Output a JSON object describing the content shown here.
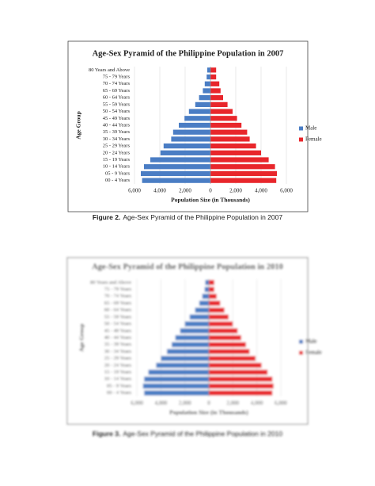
{
  "chart_data": [
    {
      "type": "pyramid",
      "title": "Age-Sex Pyramid of the Philippine Population in 2007",
      "x_label": "Population Size (in Thousands)",
      "y_label": "Age Group",
      "categories": [
        "00 - 4 Years",
        "05 - 9 Years",
        "10 - 14 Years",
        "15 - 19 Years",
        "20 - 24 Years",
        "25 - 29 Years",
        "30 - 34 Years",
        "35 - 39 Years",
        "40 - 44 Years",
        "45 - 49 Years",
        "50 - 54 Years",
        "55 - 59 Years",
        "60 - 64 Years",
        "65 - 69 Years",
        "70 - 74 Years",
        "75 - 79 Years",
        "80 Years and Above"
      ],
      "series": [
        {
          "name": "Male",
          "color": "#4a7dc4",
          "values": [
            -5400,
            -5500,
            -5250,
            -4750,
            -3950,
            -3700,
            -3100,
            -2950,
            -2500,
            -2050,
            -1700,
            -1200,
            -900,
            -600,
            -450,
            -300,
            -250
          ]
        },
        {
          "name": "Female",
          "color": "#e8262b",
          "values": [
            5200,
            5250,
            5100,
            4600,
            4000,
            3600,
            3100,
            2900,
            2450,
            2100,
            1750,
            1350,
            1000,
            800,
            700,
            450,
            450
          ]
        }
      ],
      "xlim": [
        -7000,
        7000
      ],
      "xticks": [
        {
          "value": -6000,
          "label": "6,000"
        },
        {
          "value": -4000,
          "label": "4,000"
        },
        {
          "value": -2000,
          "label": "2,000"
        },
        0,
        {
          "value": 2000,
          "label": "2,000"
        },
        {
          "value": 4000,
          "label": "4,000"
        },
        {
          "value": 6000,
          "label": "6,000"
        }
      ],
      "grid": true,
      "legend": "right",
      "blurred": false
    },
    {
      "type": "pyramid",
      "title": "Age-Sex Pyramid of the Philippine Population in 2010",
      "x_label": "Population Size (in Thousands)",
      "y_label": "Age Group",
      "categories": [
        "00 - 4 Years",
        "05 - 9 Years",
        "10 - 14 Years",
        "15 - 19 Years",
        "20 - 24 Years",
        "25 - 29 Years",
        "30 - 34 Years",
        "35 - 39 Years",
        "40 - 44 Years",
        "45 - 49 Years",
        "50 - 54 Years",
        "55 - 59 Years",
        "60 - 64 Years",
        "65 - 69 Years",
        "70 - 74 Years",
        "75 - 79 Years",
        "80 Years and Above"
      ],
      "series": [
        {
          "name": "Male",
          "color": "#4a7dc4",
          "values": [
            -5400,
            -5500,
            -5400,
            -5050,
            -4400,
            -4000,
            -3500,
            -3100,
            -2800,
            -2400,
            -2000,
            -1600,
            -1150,
            -800,
            -550,
            -350,
            -300
          ]
        },
        {
          "name": "Female",
          "color": "#e8262b",
          "values": [
            5300,
            5400,
            5300,
            4900,
            4400,
            3900,
            3400,
            3100,
            2700,
            2400,
            2000,
            1650,
            1300,
            950,
            650,
            450,
            450
          ]
        }
      ],
      "xlim": [
        -7000,
        7000
      ],
      "xticks": [
        {
          "value": -6000,
          "label": "6,000"
        },
        {
          "value": -4000,
          "label": "4,000"
        },
        {
          "value": -2000,
          "label": "2,000"
        },
        0,
        {
          "value": 2000,
          "label": "2,000"
        },
        {
          "value": 4000,
          "label": "4,000"
        },
        {
          "value": 6000,
          "label": "6,000"
        }
      ],
      "grid": true,
      "legend": "right",
      "blurred": true
    }
  ],
  "captions": [
    {
      "label": "Figure 2.",
      "text": "Age-Sex Pyramid of the Philippine Population in 2007"
    },
    {
      "label": "Figure 3.",
      "text": "Age-Sex Pyramid of the Philippine Population in 2010"
    }
  ]
}
